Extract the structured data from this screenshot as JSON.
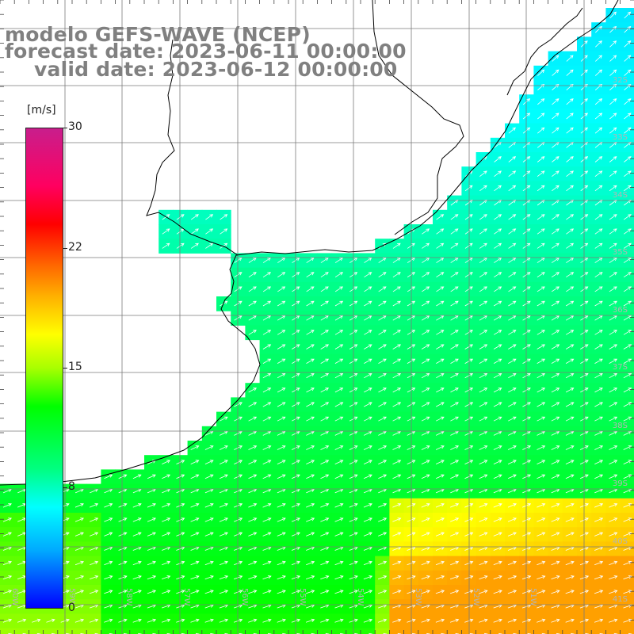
{
  "header": {
    "model_line": "modelo GEFS-WAVE (NCEP)",
    "forecast_line": "forecast date: 2023-06-11 00:00:00",
    "valid_line": "valid date: 2023-06-12 00:00:00"
  },
  "colorbar": {
    "unit": "[m/s]",
    "ticks": [
      "30",
      "22",
      "15",
      "8",
      "0"
    ],
    "colors": [
      "#0000ff",
      "#00aaff",
      "#00ffff",
      "#00ff80",
      "#00ff00",
      "#a8ff00",
      "#ffff00",
      "#ffb000",
      "#ff6000",
      "#ff0000",
      "#ff0060",
      "#c81e8c"
    ]
  },
  "axes": {
    "lat_labels": [
      "32S",
      "33S",
      "34S",
      "35S",
      "36S",
      "37S",
      "38S",
      "39S",
      "40S",
      "41S"
    ],
    "lon_labels": [
      "60W",
      "59W",
      "58W",
      "57W",
      "56W",
      "55W",
      "54W",
      "53W",
      "52W",
      "51W"
    ]
  },
  "colors": {
    "land": "#ffffff",
    "coast": "#000000",
    "grid": "#7a7a7a",
    "arrows": "#ffffff",
    "title": "#808080"
  }
}
